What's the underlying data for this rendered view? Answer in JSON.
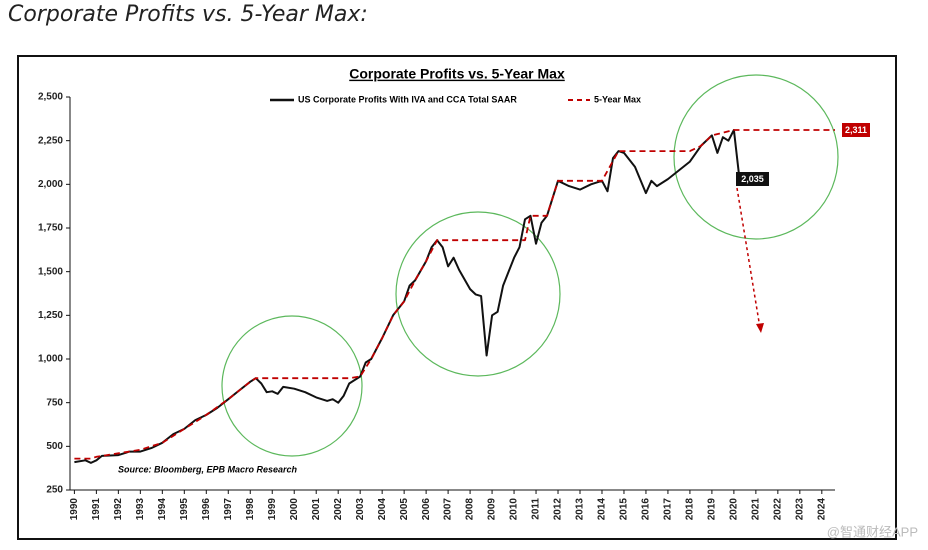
{
  "header": {
    "title": "Corporate Profits vs. 5-Year Max:"
  },
  "watermark": "@智通财经APP",
  "chart_data": {
    "type": "line",
    "title": "Corporate Profits vs. 5-Year Max",
    "annotations": [
      "2,311",
      "2,035",
      "Source: Bloomberg, EPB Macro Research"
    ],
    "xlim": [
      1989.8,
      2024.6
    ],
    "xticks": [
      1990,
      1991,
      1992,
      1993,
      1994,
      1995,
      1996,
      1997,
      1998,
      1999,
      2000,
      2001,
      2002,
      2003,
      2004,
      2005,
      2006,
      2007,
      2008,
      2009,
      2010,
      2011,
      2012,
      2013,
      2014,
      2015,
      2016,
      2017,
      2018,
      2019,
      2020,
      2021,
      2022,
      2023,
      2024
    ],
    "ylim": [
      250,
      2500
    ],
    "yticks": [
      250,
      500,
      750,
      {
        "value": 1000,
        "label": "1,000"
      },
      {
        "value": 1250,
        "label": "1,250"
      },
      {
        "value": 1500,
        "label": "1,500"
      },
      {
        "value": 1750,
        "label": "1,750"
      },
      {
        "value": 2000,
        "label": "2,000"
      },
      {
        "value": 2250,
        "label": "2,250"
      },
      {
        "value": 2500,
        "label": "2,500"
      }
    ],
    "series": [
      {
        "name": "US Corporate Profits With IVA and CCA Total SAAR",
        "color": "#111111",
        "dash": false,
        "x": [
          1990,
          1990.5,
          1990.75,
          1991,
          1991.25,
          1992,
          1992.5,
          1993,
          1993.5,
          1994,
          1994.5,
          1995,
          1995.5,
          1996,
          1996.5,
          1997,
          1997.5,
          1998,
          1998.25,
          1998.5,
          1998.75,
          1999,
          1999.25,
          1999.5,
          2000,
          2000.5,
          2001,
          2001.5,
          2001.75,
          2002,
          2002.25,
          2002.5,
          2003,
          2003.25,
          2003.5,
          2004,
          2004.5,
          2005,
          2005.25,
          2005.5,
          2006,
          2006.25,
          2006.5,
          2006.75,
          2007,
          2007.25,
          2007.5,
          2008,
          2008.25,
          2008.5,
          2008.75,
          2009,
          2009.25,
          2009.5,
          2010,
          2010.25,
          2010.5,
          2010.75,
          2011,
          2011.25,
          2011.5,
          2012,
          2012.5,
          2013,
          2013.5,
          2014,
          2014.25,
          2014.5,
          2014.75,
          2015,
          2015.5,
          2016,
          2016.25,
          2016.5,
          2017,
          2017.5,
          2018,
          2018.5,
          2019,
          2019.25,
          2019.5,
          2019.75,
          2020,
          2020.25
        ],
        "values": [
          410,
          420,
          405,
          420,
          445,
          450,
          470,
          470,
          490,
          520,
          570,
          600,
          650,
          680,
          720,
          770,
          820,
          870,
          890,
          860,
          810,
          815,
          800,
          840,
          830,
          810,
          780,
          760,
          770,
          750,
          790,
          860,
          900,
          980,
          1000,
          1120,
          1250,
          1330,
          1420,
          1450,
          1560,
          1640,
          1680,
          1640,
          1530,
          1580,
          1510,
          1400,
          1370,
          1360,
          1020,
          1250,
          1270,
          1420,
          1580,
          1640,
          1800,
          1820,
          1660,
          1780,
          1820,
          2020,
          1990,
          1970,
          2000,
          2020,
          1960,
          2150,
          2190,
          2180,
          2100,
          1950,
          2020,
          1990,
          2030,
          2080,
          2130,
          2220,
          2280,
          2180,
          2270,
          2250,
          2311,
          2035
        ]
      },
      {
        "name": "5-Year Max",
        "color": "#c00000",
        "dash": true,
        "x": [
          1990,
          1990.75,
          1991,
          1992,
          1993,
          1994,
          1995,
          1996,
          1997,
          1998,
          1998.25,
          2002.5,
          2003,
          2003.5,
          2004,
          2004.5,
          2005,
          2005.5,
          2006,
          2006.5,
          2010.5,
          2010.75,
          2011.5,
          2012,
          2014,
          2014.75,
          2018,
          2018.5,
          2019,
          2020,
          2024.6
        ],
        "values": [
          430,
          430,
          440,
          460,
          480,
          520,
          600,
          680,
          770,
          870,
          890,
          890,
          900,
          1000,
          1120,
          1250,
          1330,
          1450,
          1560,
          1680,
          1680,
          1820,
          1820,
          2020,
          2020,
          2190,
          2190,
          2220,
          2280,
          2311,
          2311
        ]
      }
    ]
  }
}
